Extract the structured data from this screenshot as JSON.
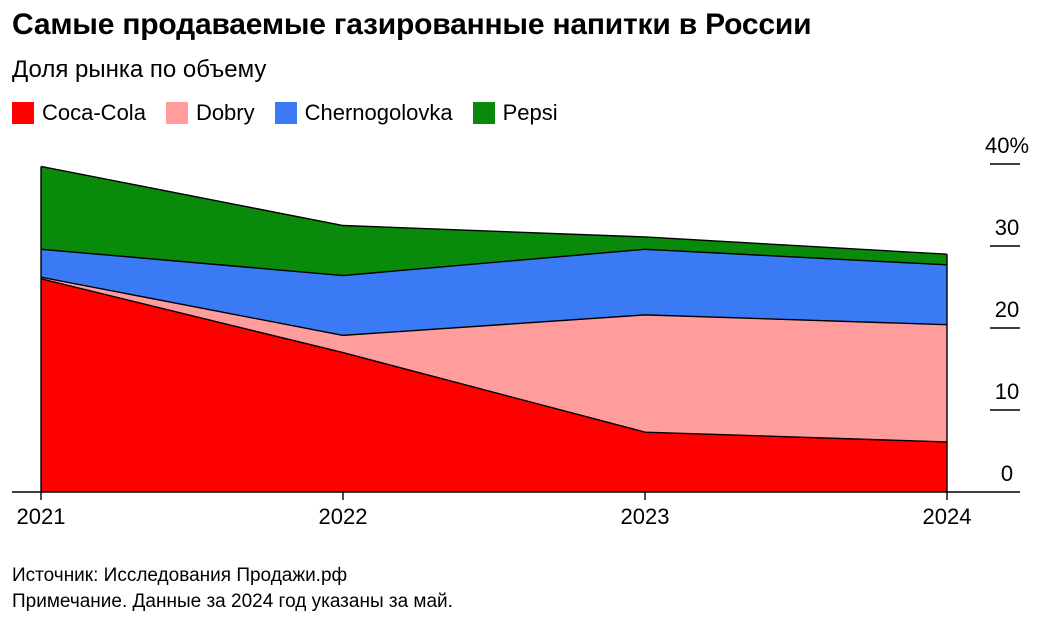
{
  "title": "Самые продаваемые газированные напитки в России",
  "subtitle": "Доля рынка по объему",
  "footer": {
    "source": "Источник: Исследования Продажи.рф",
    "note": "Примечание. Данные за 2024 год указаны за май."
  },
  "colors": {
    "Coca-Cola": "#ff0000",
    "Dobry": "#ff9d9d",
    "Chernogolovka": "#3a7bf5",
    "Pepsi": "#0a8a0a"
  },
  "chart_data": {
    "type": "area",
    "stacked": true,
    "title": "Самые продаваемые газированные напитки в России",
    "subtitle": "Доля рынка по объему",
    "x": [
      "2021",
      "2022",
      "2023",
      "2024"
    ],
    "xlabel": "",
    "ylabel": "",
    "ylim": [
      0,
      40
    ],
    "yticks": [
      {
        "value": 0,
        "label": "0"
      },
      {
        "value": 10,
        "label": "10"
      },
      {
        "value": 20,
        "label": "20"
      },
      {
        "value": 30,
        "label": "30"
      },
      {
        "value": 40,
        "label": "40%"
      }
    ],
    "legend_position": "top-left",
    "series": [
      {
        "name": "Coca-Cola",
        "values": [
          26,
          17,
          7.3,
          6.1
        ]
      },
      {
        "name": "Dobry",
        "values": [
          0.2,
          2.1,
          14.3,
          14.3
        ]
      },
      {
        "name": "Chernogolovka",
        "values": [
          3.4,
          7.3,
          8.0,
          7.3
        ]
      },
      {
        "name": "Pepsi",
        "values": [
          10.1,
          6.1,
          1.5,
          1.3
        ]
      }
    ]
  }
}
